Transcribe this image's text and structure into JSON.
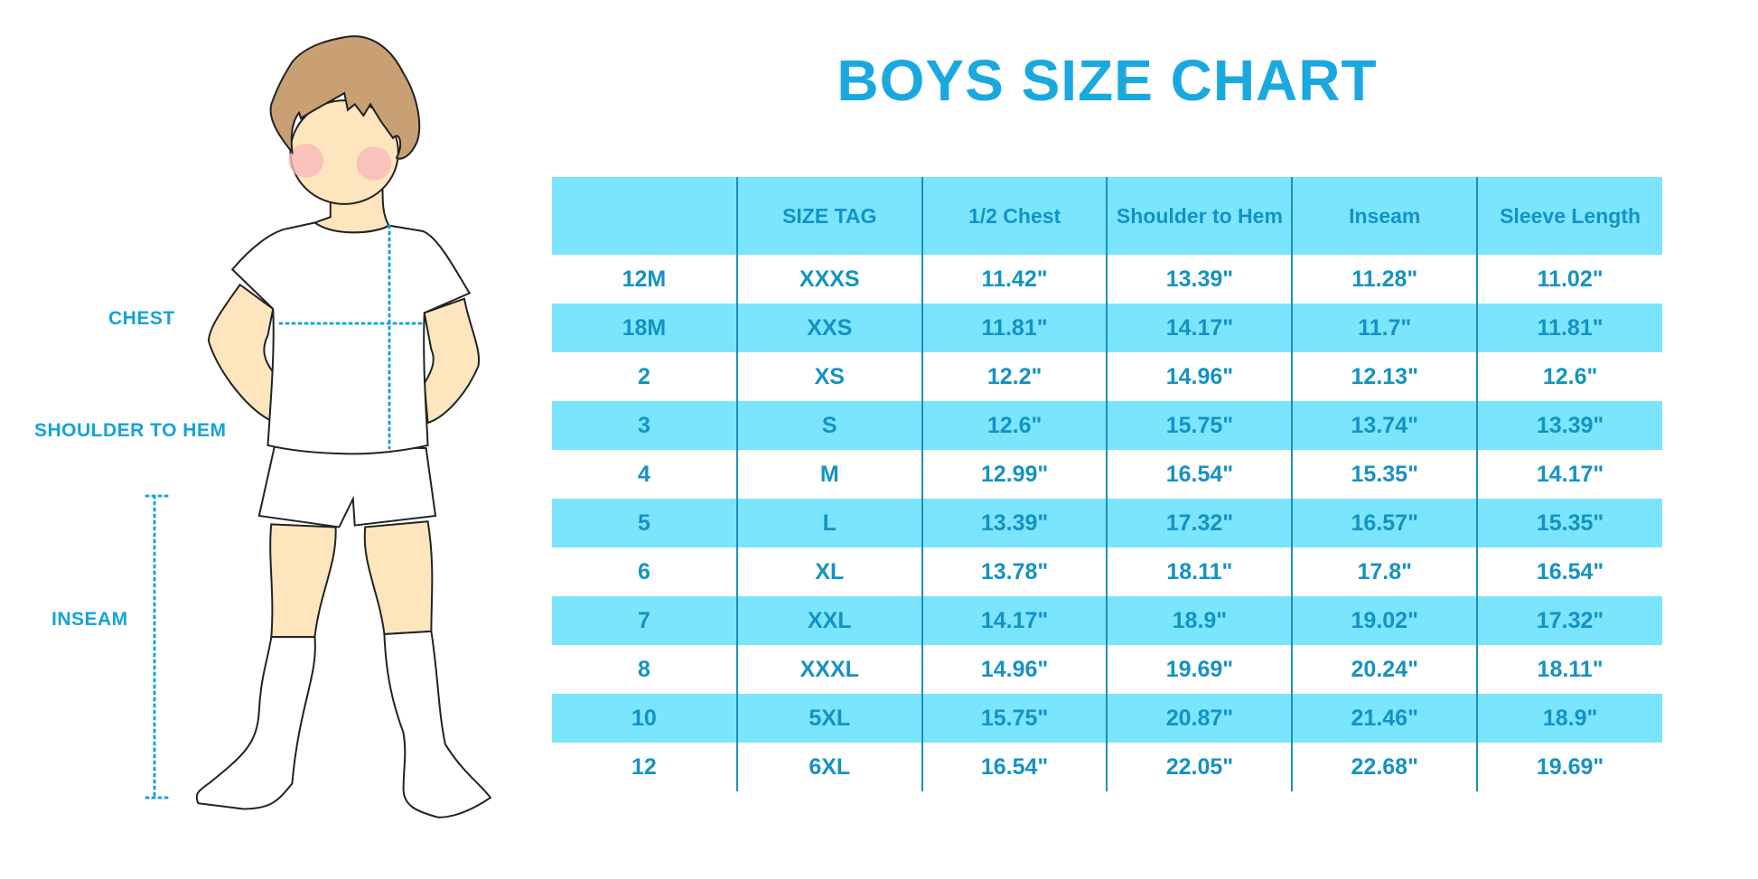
{
  "title": "BOYS SIZE CHART",
  "labels": {
    "chest": "CHEST",
    "shoulder_to_hem": "SHOULDER TO HEM",
    "inseam": "INSEAM"
  },
  "colors": {
    "accent": "#1ba8df",
    "stripe": "#7ae5fc",
    "text": "#1592c4"
  },
  "table": {
    "headers": [
      "",
      "SIZE TAG",
      "1/2 Chest",
      "Shoulder to Hem",
      "Inseam",
      "Sleeve Length"
    ],
    "rows": [
      [
        "12M",
        "XXXS",
        "11.42\"",
        "13.39\"",
        "11.28\"",
        "11.02\""
      ],
      [
        "18M",
        "XXS",
        "11.81\"",
        "14.17\"",
        "11.7\"",
        "11.81\""
      ],
      [
        "2",
        "XS",
        "12.2\"",
        "14.96\"",
        "12.13\"",
        "12.6\""
      ],
      [
        "3",
        "S",
        "12.6\"",
        "15.75\"",
        "13.74\"",
        "13.39\""
      ],
      [
        "4",
        "M",
        "12.99\"",
        "16.54\"",
        "15.35\"",
        "14.17\""
      ],
      [
        "5",
        "L",
        "13.39\"",
        "17.32\"",
        "16.57\"",
        "15.35\""
      ],
      [
        "6",
        "XL",
        "13.78\"",
        "18.11\"",
        "17.8\"",
        "16.54\""
      ],
      [
        "7",
        "XXL",
        "14.17\"",
        "18.9\"",
        "19.02\"",
        "17.32\""
      ],
      [
        "8",
        "XXXL",
        "14.96\"",
        "19.69\"",
        "20.24\"",
        "18.11\""
      ],
      [
        "10",
        "5XL",
        "15.75\"",
        "20.87\"",
        "21.46\"",
        "18.9\""
      ],
      [
        "12",
        "6XL",
        "16.54\"",
        "22.05\"",
        "22.68\"",
        "19.69\""
      ]
    ]
  }
}
